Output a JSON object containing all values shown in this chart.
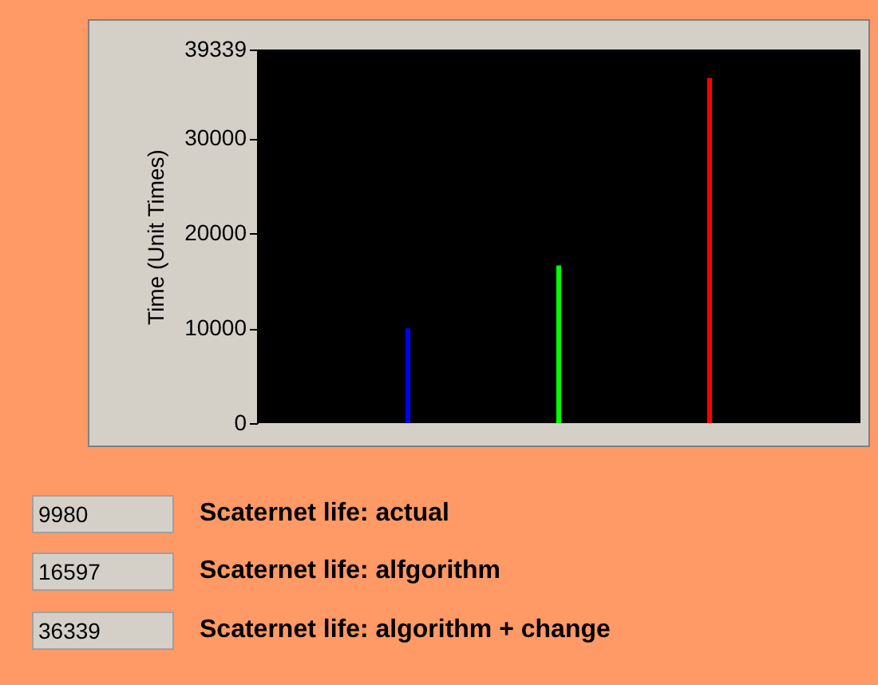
{
  "chart_data": {
    "type": "bar",
    "ylabel": "Time (Unit Times)",
    "categories": [
      null,
      null,
      null
    ],
    "values": [
      9980,
      16597,
      36339
    ],
    "colors": [
      "#0000ff",
      "#00ff00",
      "#ff0000"
    ],
    "ylim": [
      0,
      39339
    ],
    "yticks": [
      0,
      10000,
      20000,
      30000,
      39339
    ],
    "annotations": [
      "9980",
      "Scaternet life: actual",
      "16597",
      "Scaternet life: alfgorithm",
      "36339",
      "Scaternet life: algorithm + change"
    ]
  }
}
